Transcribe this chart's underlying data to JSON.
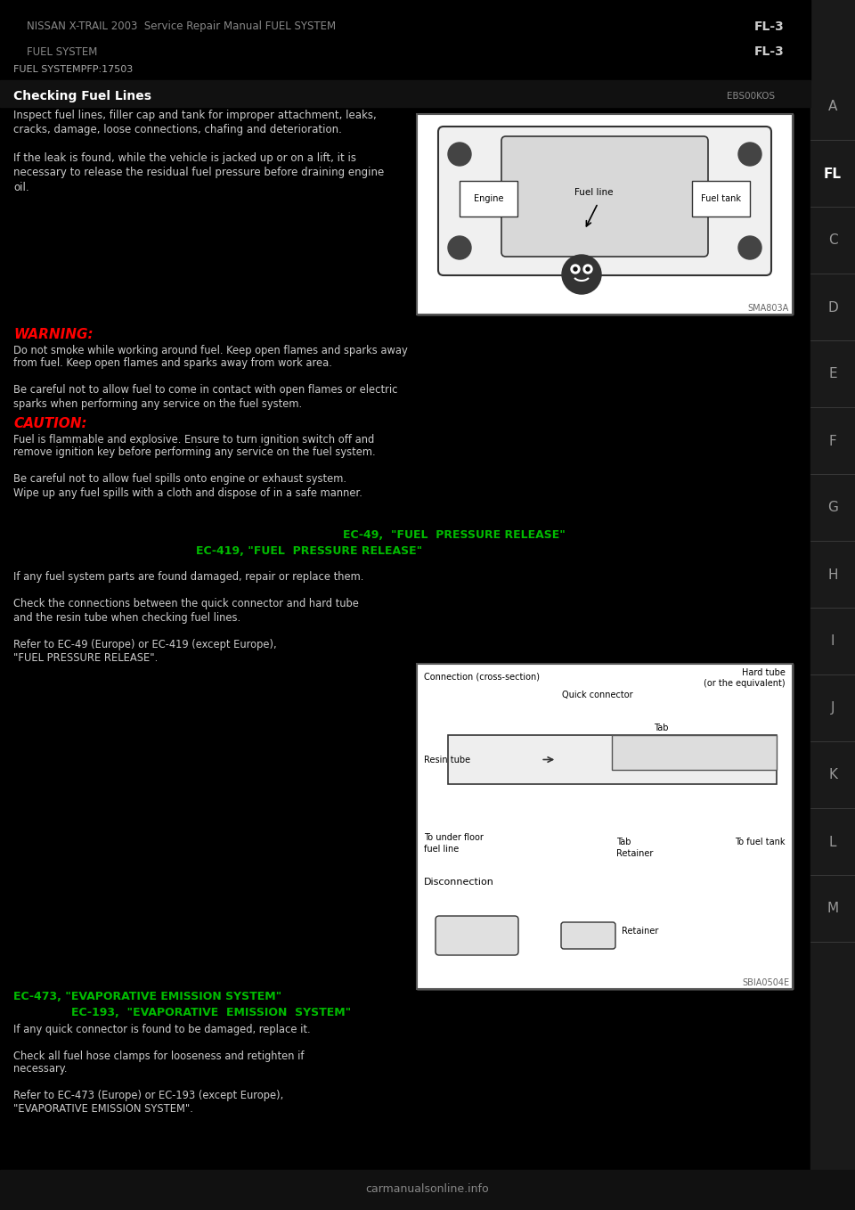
{
  "bg_color": "#000000",
  "right_sidebar_letters": [
    "A",
    "FL",
    "C",
    "D",
    "E",
    "F",
    "G",
    "H",
    "I",
    "J",
    "K",
    "L",
    "M"
  ],
  "right_sidebar_highlight": "FL",
  "sidebar_text_color": "#999999",
  "sidebar_highlight_color": "#ffffff",
  "warning_label": "WARNING:",
  "warning_color": "#ff0000",
  "caution_label": "CAUTION:",
  "caution_color": "#ff0000",
  "green_link1": "EC-49,  \"FUEL  PRESSURE RELEASE\"",
  "green_link2": "EC-419, \"FUEL  PRESSURE RELEASE\"",
  "green_color": "#00bb00",
  "green_link3": "EC-473, \"EVAPORATIVE EMISSION SYSTEM\"",
  "green_link4": "EC-193,  \"EVAPORATIVE  EMISSION  SYSTEM\"",
  "diagram1_caption": "SMA803A",
  "diagram2_caption": "SBIA0504E",
  "page_number": "FL-3",
  "manual_title": "NISSAN X-TRAIL 2003  Service Repair Manual FUEL SYSTEM",
  "fuel_system_label": "FUEL SYSTEM",
  "pfp_label": "FUEL SYSTEMPFP:17503",
  "section_header": "Checking Fuel Lines",
  "section_code": "EBS00KOS",
  "footer_url": "carmanualsonline.info"
}
